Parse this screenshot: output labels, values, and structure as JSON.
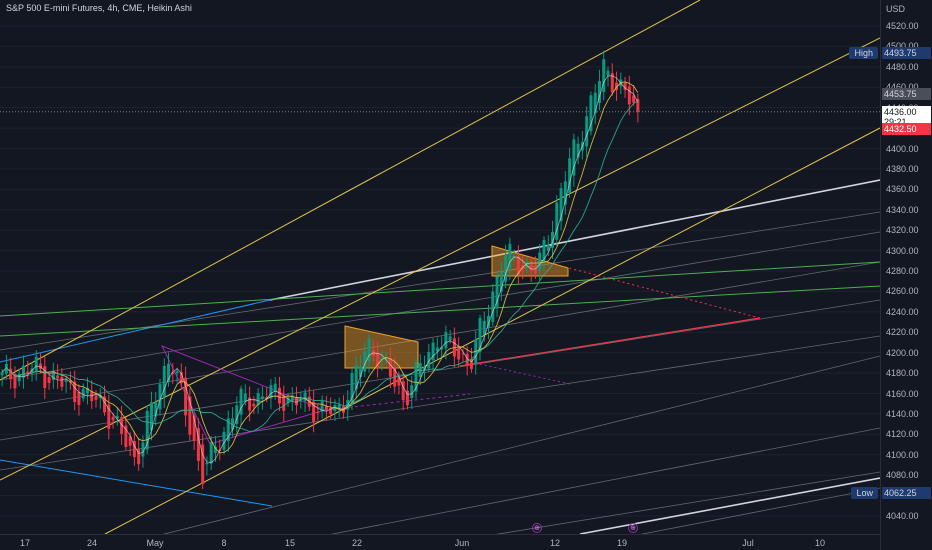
{
  "header": {
    "title": "S&P 500 E-mini Futures, 4h, CME, Heikin Ashi"
  },
  "price_axis": {
    "currency": "USD",
    "ticks": [
      "4520.00",
      "4500.00",
      "4480.00",
      "4460.00",
      "4440.00",
      "4420.00",
      "4400.00",
      "4380.00",
      "4360.00",
      "4340.00",
      "4320.00",
      "4300.00",
      "4280.00",
      "4260.00",
      "4240.00",
      "4220.00",
      "4200.00",
      "4180.00",
      "4160.00",
      "4140.00",
      "4120.00",
      "4100.00",
      "4080.00",
      "4060.00",
      "4040.00"
    ]
  },
  "time_axis": {
    "ticks": [
      "17",
      "24",
      "May",
      "8",
      "15",
      "22",
      "Jun",
      "12",
      "19",
      "Jul",
      "10"
    ]
  },
  "labels": {
    "high_label": "High",
    "high_value": "4493.75",
    "low_label": "Low",
    "low_value": "4062.25",
    "level_grey": "4453.75",
    "last_price": "4436.00",
    "countdown": "29:21",
    "level_red": "4432.50"
  },
  "events": [
    {
      "icon": "event-icon",
      "text": "⊕"
    },
    {
      "icon": "event-icon",
      "text": "⊕"
    }
  ],
  "colors": {
    "up": "#089981",
    "down": "#f23645",
    "background": "#131722",
    "channel": "#e0c34a",
    "triangle": "#9c27b0",
    "rectangle": "#f59f26"
  },
  "chart_data": {
    "type": "candlestick",
    "style": "Heikin Ashi",
    "symbol": "S&P 500 E-mini Futures",
    "interval": "4h",
    "exchange": "CME",
    "ylim": [
      4030,
      4530
    ],
    "x": [
      "Apr 14",
      "Apr 17",
      "Apr 20",
      "Apr 24",
      "Apr 27",
      "May 1",
      "May 4",
      "May 8",
      "May 11",
      "May 15",
      "May 18",
      "May 22",
      "May 25",
      "May 30",
      "Jun 2",
      "Jun 6",
      "Jun 9",
      "Jun 12",
      "Jun 15",
      "Jun 16"
    ],
    "close": [
      4175,
      4185,
      4165,
      4150,
      4095,
      4200,
      4080,
      4150,
      4160,
      4150,
      4140,
      4210,
      4155,
      4215,
      4190,
      4295,
      4280,
      4390,
      4480,
      4435
    ],
    "high": 4493.75,
    "low": 4062.25,
    "last": 4436.0
  }
}
